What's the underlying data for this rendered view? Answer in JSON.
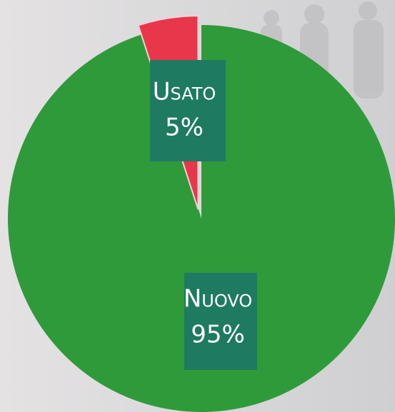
{
  "chart_data": {
    "type": "pie",
    "categories": [
      "Usato",
      "Nuovo"
    ],
    "values": [
      5,
      95
    ],
    "value_labels": [
      "5%",
      "95%"
    ],
    "colors": [
      "#e8364a",
      "#2f9a3a"
    ]
  }
}
